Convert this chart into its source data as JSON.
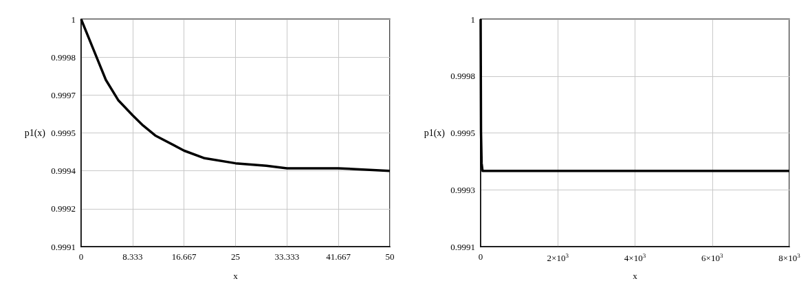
{
  "chart_data": [
    {
      "type": "line",
      "xlabel": "x",
      "ylabel": "p1(x)",
      "color": "#000000",
      "marker": "none",
      "line_style": "solid",
      "grid": true,
      "x": [
        0,
        2,
        4,
        6,
        8.333,
        10,
        12,
        16.667,
        20,
        25,
        30,
        33.333,
        41.667,
        50
      ],
      "values": [
        1.0,
        0.99988,
        0.99976,
        0.99968,
        0.99962,
        0.99958,
        0.99954,
        0.99948,
        0.99945,
        0.99943,
        0.99942,
        0.99941,
        0.99941,
        0.9994
      ],
      "xlim": [
        0,
        50
      ],
      "xticks": [
        0,
        8.333,
        16.667,
        25,
        33.333,
        41.667,
        50
      ],
      "ylim": [
        0.9991,
        1
      ],
      "yticks": [
        0.9991,
        {
          "value": 0.99925,
          "label": "0.9992"
        },
        0.9994,
        {
          "value": 0.99955,
          "label": "0.9995"
        },
        0.9997,
        {
          "value": 0.99985,
          "label": "0.9998"
        },
        1
      ]
    },
    {
      "type": "line",
      "xlabel": "x",
      "ylabel": "p1(x)",
      "color": "#000000",
      "marker": "none",
      "line_style": "solid",
      "grid": true,
      "x": [
        0,
        10,
        25,
        50,
        8000
      ],
      "values": [
        1.0,
        0.99955,
        0.99943,
        0.9994,
        0.9994
      ],
      "xlim": [
        0,
        8000
      ],
      "xticks": [
        0,
        {
          "value": 2000,
          "label": "2×10$^{3}$"
        },
        {
          "value": 4000,
          "label": "4×10$^{3}$"
        },
        {
          "value": 6000,
          "label": "6×10$^{3}$"
        },
        {
          "value": 8000,
          "label": "8×10$^{3}$"
        }
      ],
      "ylim": [
        0.9991,
        1
      ],
      "yticks": [
        0.9991,
        {
          "value": 0.999325,
          "label": "0.9993"
        },
        {
          "value": 0.99955,
          "label": "0.9995"
        },
        {
          "value": 0.999775,
          "label": "0.9998"
        },
        1
      ]
    }
  ]
}
